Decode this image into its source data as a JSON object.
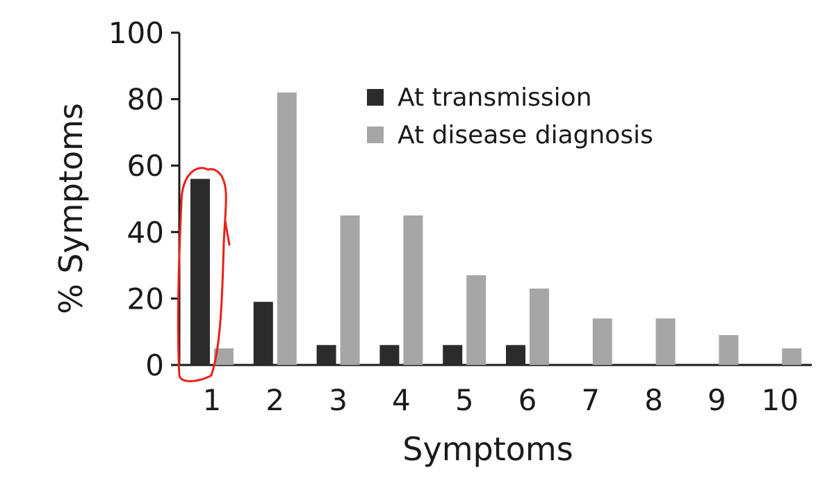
{
  "chart_data": {
    "type": "bar",
    "title": "",
    "xlabel": "Symptoms",
    "ylabel": "% Symptoms",
    "ylim": [
      0,
      100
    ],
    "yticks": [
      "0",
      "20",
      "40",
      "60",
      "80",
      "100"
    ],
    "categories": [
      "1",
      "2",
      "3",
      "4",
      "5",
      "6",
      "7",
      "8",
      "9",
      "10"
    ],
    "series": [
      {
        "name": "At transmission",
        "color": "#2b2b2b",
        "values": [
          56,
          19,
          6,
          6,
          6,
          6,
          0,
          0,
          0,
          0
        ]
      },
      {
        "name": "At disease diagnosis",
        "color": "#a6a6a6",
        "values": [
          5,
          82,
          45,
          45,
          27,
          23,
          14,
          14,
          9,
          5
        ]
      }
    ],
    "grid": false,
    "legend_position": "top-center",
    "annotation": {
      "type": "hand-drawn-circle",
      "color": "#e8201a",
      "target": "At transmission, category 1"
    }
  }
}
